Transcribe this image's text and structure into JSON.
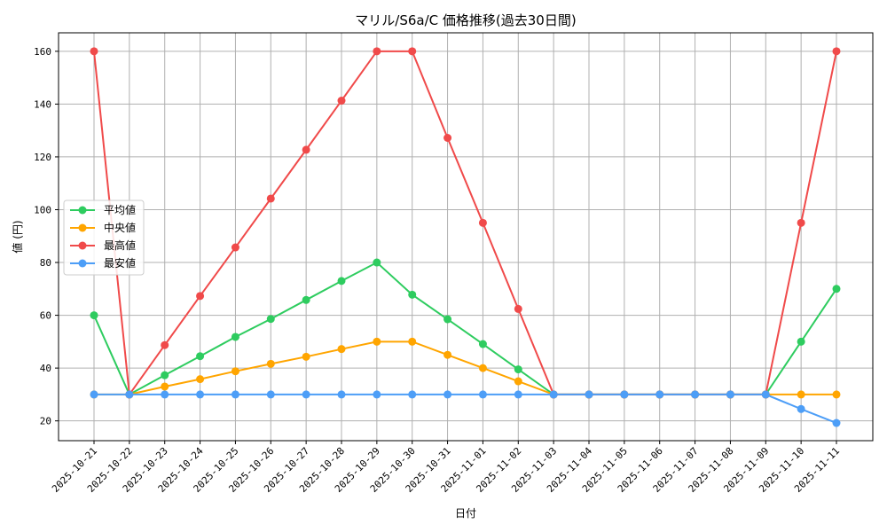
{
  "chart_data": {
    "type": "line",
    "title": "マリル/S6a/C 価格推移(過去30日間)",
    "xlabel": "日付",
    "ylabel": "値 (円)",
    "categories": [
      "2025-10-21",
      "2025-10-22",
      "2025-10-23",
      "2025-10-24",
      "2025-10-25",
      "2025-10-26",
      "2025-10-27",
      "2025-10-28",
      "2025-10-29",
      "2025-10-30",
      "2025-10-31",
      "2025-11-01",
      "2025-11-02",
      "2025-11-03",
      "2025-11-04",
      "2025-11-05",
      "2025-11-06",
      "2025-11-07",
      "2025-11-08",
      "2025-11-09",
      "2025-11-10",
      "2025-11-11"
    ],
    "ylim": [
      12.5,
      167
    ],
    "yticks": [
      20,
      40,
      60,
      80,
      100,
      120,
      140,
      160
    ],
    "grid": true,
    "legend_position": "center-left",
    "series": [
      {
        "name": "平均値",
        "color": "#2ecc5f",
        "values": [
          60,
          30,
          37.3,
          44.5,
          51.8,
          58.6,
          65.8,
          73,
          80,
          67.8,
          58.5,
          49.1,
          39.5,
          30,
          30,
          30,
          30,
          30,
          30,
          30,
          50,
          70
        ]
      },
      {
        "name": "中央値",
        "color": "#ffa500",
        "values": [
          30,
          30,
          33,
          35.8,
          38.8,
          41.6,
          44.3,
          47.2,
          50,
          50,
          45,
          40,
          35,
          30,
          30,
          30,
          30,
          30,
          30,
          30,
          30,
          30
        ]
      },
      {
        "name": "最高値",
        "color": "#f04a4a",
        "values": [
          160,
          30,
          48.7,
          67.3,
          85.7,
          104.2,
          122.7,
          141.3,
          160,
          160,
          127.2,
          95,
          62.4,
          30,
          30,
          30,
          30,
          30,
          30,
          30,
          95,
          160
        ]
      },
      {
        "name": "最安値",
        "color": "#4d9ef7",
        "values": [
          30,
          30,
          30,
          30,
          30,
          30,
          30,
          30,
          30,
          30,
          30,
          30,
          30,
          30,
          30,
          30,
          30,
          30,
          30,
          30,
          24.5,
          19.2
        ]
      }
    ]
  }
}
